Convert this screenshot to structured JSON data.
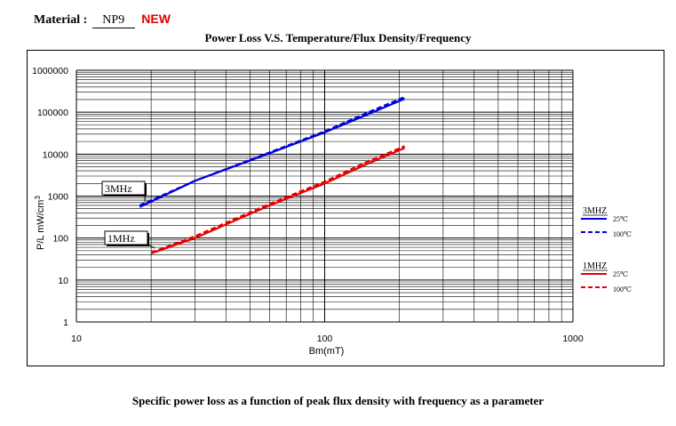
{
  "header": {
    "material_label": "Material :",
    "material_value": "NP9",
    "new_badge": "NEW"
  },
  "caption": "Specific power loss as a function of peak flux density with frequency as a parameter",
  "colors": {
    "red_series": "#e60000",
    "blue_series": "#0000dd",
    "new_badge": "#e00000",
    "grid": "#000000"
  },
  "chart_data": {
    "type": "line",
    "title": "Power Loss V.S. Temperature/Flux Density/Frequency",
    "xlabel": "Bm(mT)",
    "ylabel": "P/L mW/cm",
    "ylabel_sup": "3",
    "xscale": "log",
    "yscale": "log",
    "xlim": [
      10,
      1000
    ],
    "ylim": [
      1,
      1000000
    ],
    "xticks": [
      "10",
      "100",
      "1000"
    ],
    "yticks": [
      "1",
      "10",
      "100",
      "1000",
      "10000",
      "100000",
      "1000000"
    ],
    "grid": true,
    "legend_position": "right",
    "legend_groups": [
      {
        "label": "3MHZ",
        "entries": [
          "25℃",
          "100℃"
        ]
      },
      {
        "label": "1MHZ",
        "entries": [
          "25℃",
          "100℃"
        ]
      }
    ],
    "annotations": [
      "3MHz",
      "1MHz"
    ],
    "series": [
      {
        "name": "3MHZ 25℃",
        "color": "#0000dd",
        "dash": "solid",
        "x": [
          18,
          30,
          60,
          100,
          150,
          210
        ],
        "y": [
          550,
          2300,
          10500,
          33000,
          90000,
          210000
        ]
      },
      {
        "name": "3MHZ 100℃",
        "color": "#0000dd",
        "dash": "dashed",
        "x": [
          18,
          30,
          60,
          100,
          150,
          210
        ],
        "y": [
          600,
          2300,
          11000,
          35000,
          100000,
          230000
        ]
      },
      {
        "name": "1MHZ 25℃",
        "color": "#e60000",
        "dash": "solid",
        "x": [
          20,
          30,
          60,
          100,
          150,
          210
        ],
        "y": [
          43,
          100,
          600,
          2000,
          6000,
          14000
        ]
      },
      {
        "name": "1MHZ 100℃",
        "color": "#e60000",
        "dash": "dashed",
        "x": [
          20,
          30,
          60,
          100,
          150,
          210
        ],
        "y": [
          45,
          110,
          650,
          2200,
          6800,
          15500
        ]
      }
    ]
  }
}
